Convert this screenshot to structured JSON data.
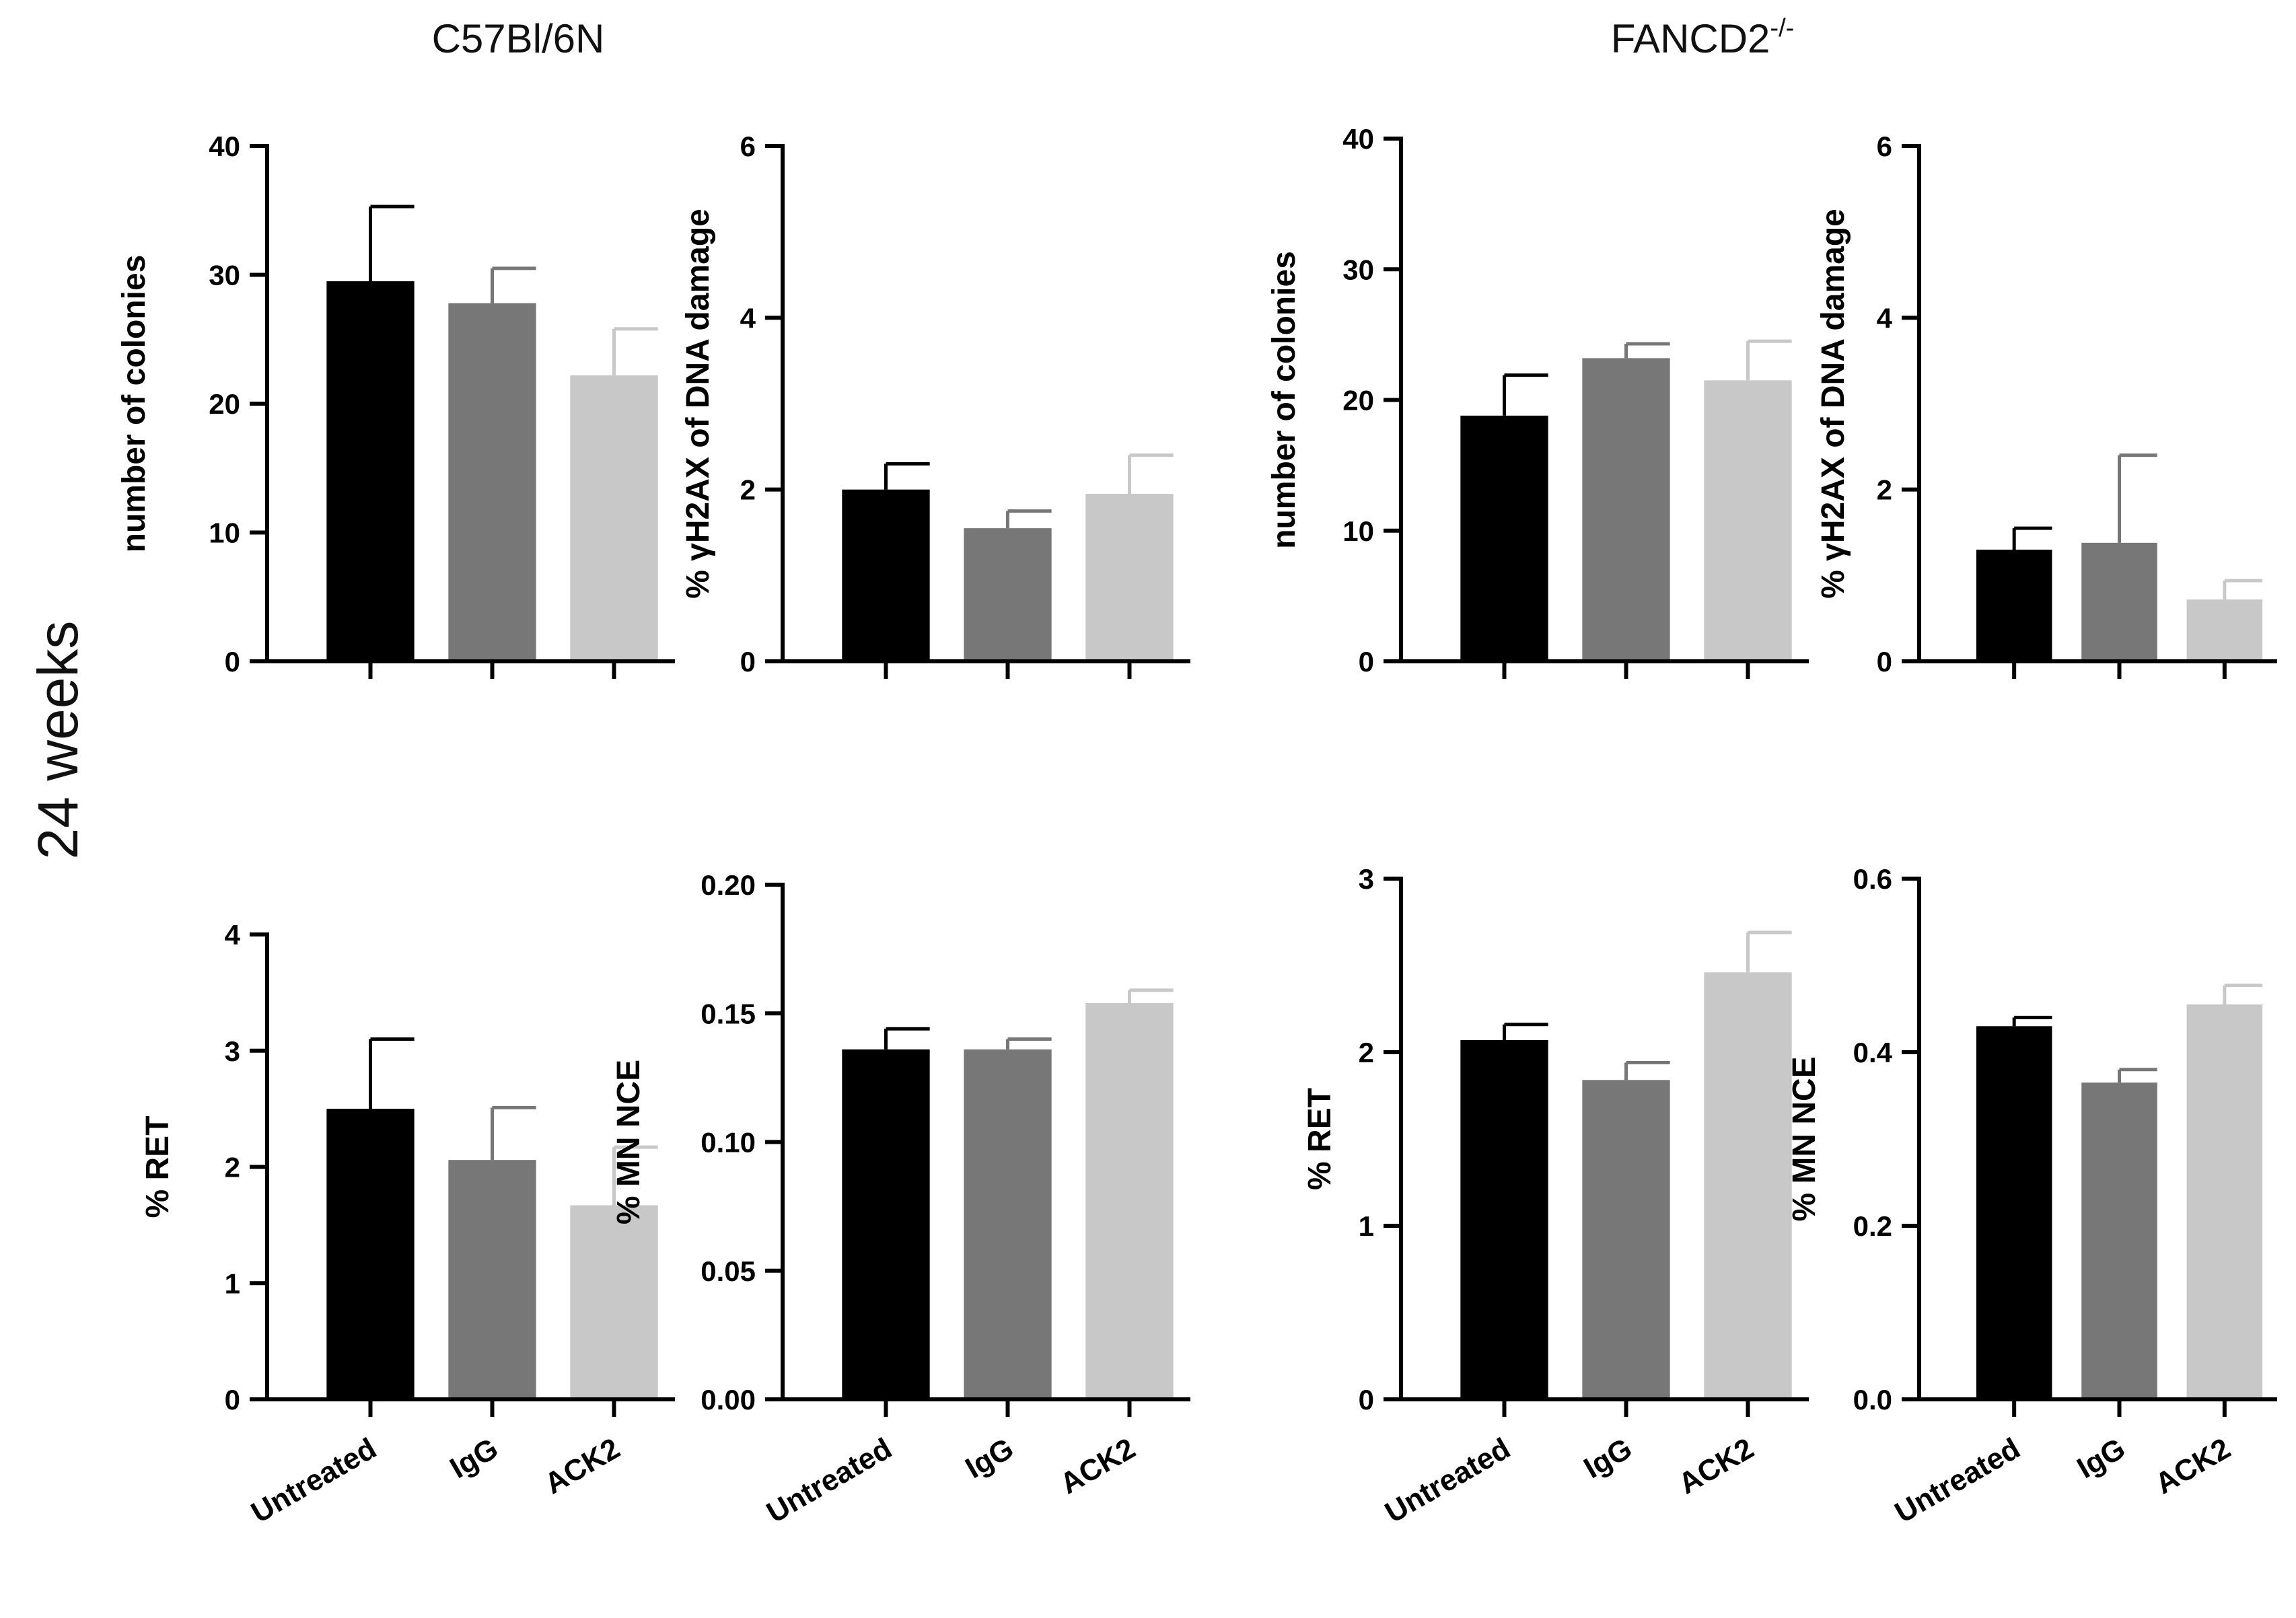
{
  "figure": {
    "groups": [
      "C57Bl/6N",
      "FANCD2-/-"
    ],
    "row_label": "24 weeks",
    "bar_colors": [
      "#000000",
      "#777777",
      "#c8c8c8"
    ]
  },
  "chart_data": [
    {
      "id": "c57-colonies",
      "type": "bar",
      "group": "C57Bl/6N",
      "title": "",
      "xlabel": "",
      "ylabel": "number of colonies",
      "categories": [
        "Untreated",
        "IgG",
        "ACK2"
      ],
      "values": [
        29.5,
        27.8,
        22.2
      ],
      "errors": [
        5.8,
        2.7,
        3.6
      ],
      "ylim": [
        0,
        40
      ],
      "yticks": [
        "0",
        "10",
        "20",
        "30",
        "40"
      ],
      "grid": false,
      "show_categories": false
    },
    {
      "id": "c57-h2ax",
      "type": "bar",
      "group": "C57Bl/6N",
      "title": "",
      "xlabel": "",
      "ylabel": "% γH2AX of DNA damage",
      "categories": [
        "Untreated",
        "IgG",
        "ACK2"
      ],
      "values": [
        2.0,
        1.55,
        1.95
      ],
      "errors": [
        0.3,
        0.2,
        0.45
      ],
      "ylim": [
        0,
        6
      ],
      "yticks": [
        "0",
        "2",
        "4",
        "6"
      ],
      "grid": false,
      "show_categories": false
    },
    {
      "id": "fancd2-colonies",
      "type": "bar",
      "group": "FANCD2-/-",
      "title": "",
      "xlabel": "",
      "ylabel": "number of colonies",
      "categories": [
        "Untreated",
        "IgG",
        "ACK2"
      ],
      "values": [
        18.8,
        23.2,
        21.5
      ],
      "errors": [
        3.1,
        1.1,
        3.0
      ],
      "ylim": [
        0,
        40
      ],
      "yticks": [
        "0",
        "10",
        "20",
        "30",
        "40"
      ],
      "grid": false,
      "show_categories": false
    },
    {
      "id": "fancd2-h2ax",
      "type": "bar",
      "group": "FANCD2-/-",
      "title": "",
      "xlabel": "",
      "ylabel": "% γH2AX of DNA damage",
      "categories": [
        "Untreated",
        "IgG",
        "ACK2"
      ],
      "values": [
        1.3,
        1.38,
        0.72
      ],
      "errors": [
        0.25,
        1.02,
        0.22
      ],
      "ylim": [
        0,
        6
      ],
      "yticks": [
        "0",
        "2",
        "4",
        "6"
      ],
      "grid": false,
      "show_categories": false
    },
    {
      "id": "c57-ret",
      "type": "bar",
      "group": "C57Bl/6N",
      "title": "",
      "xlabel": "",
      "ylabel": "% RET",
      "categories": [
        "Untreated",
        "IgG",
        "ACK2"
      ],
      "values": [
        2.5,
        2.06,
        1.67
      ],
      "errors": [
        0.6,
        0.45,
        0.5
      ],
      "ylim": [
        0,
        4
      ],
      "yticks": [
        "0",
        "1",
        "2",
        "3",
        "4"
      ],
      "grid": false,
      "show_categories": true
    },
    {
      "id": "c57-mn-nce",
      "type": "bar",
      "group": "C57Bl/6N",
      "title": "",
      "xlabel": "",
      "ylabel": "% MN NCE",
      "categories": [
        "Untreated",
        "IgG",
        "ACK2"
      ],
      "values": [
        0.136,
        0.136,
        0.154
      ],
      "errors": [
        0.008,
        0.004,
        0.005
      ],
      "ylim": [
        0,
        0.2
      ],
      "yticks": [
        "0.00",
        "0.05",
        "0.10",
        "0.15",
        "0.20"
      ],
      "grid": false,
      "show_categories": true
    },
    {
      "id": "fancd2-ret",
      "type": "bar",
      "group": "FANCD2-/-",
      "title": "",
      "xlabel": "",
      "ylabel": "% RET",
      "categories": [
        "Untreated",
        "IgG",
        "ACK2"
      ],
      "values": [
        2.07,
        1.84,
        2.46
      ],
      "errors": [
        0.09,
        0.1,
        0.23
      ],
      "ylim": [
        0,
        3
      ],
      "yticks": [
        "0",
        "1",
        "2",
        "3"
      ],
      "grid": false,
      "show_categories": true
    },
    {
      "id": "fancd2-mn-nce",
      "type": "bar",
      "group": "FANCD2-/-",
      "title": "",
      "xlabel": "",
      "ylabel": "% MN NCE",
      "categories": [
        "Untreated",
        "IgG",
        "ACK2"
      ],
      "values": [
        0.43,
        0.365,
        0.455
      ],
      "errors": [
        0.01,
        0.015,
        0.022
      ],
      "ylim": [
        0,
        0.6
      ],
      "yticks": [
        "0.0",
        "0.2",
        "0.4",
        "0.6"
      ],
      "grid": false,
      "show_categories": true
    }
  ]
}
